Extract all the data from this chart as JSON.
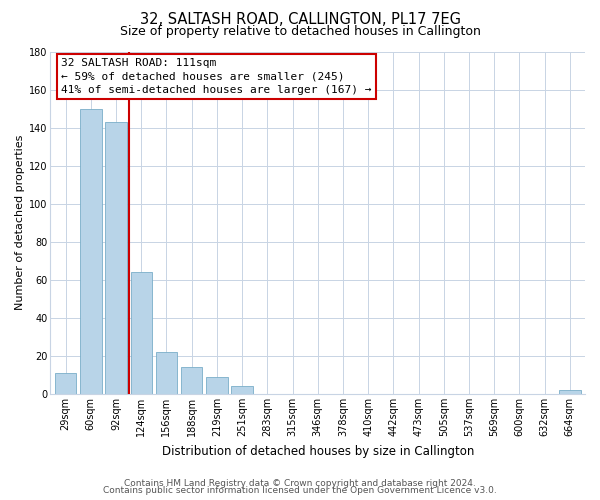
{
  "title": "32, SALTASH ROAD, CALLINGTON, PL17 7EG",
  "subtitle": "Size of property relative to detached houses in Callington",
  "xlabel": "Distribution of detached houses by size in Callington",
  "ylabel": "Number of detached properties",
  "bar_labels": [
    "29sqm",
    "60sqm",
    "92sqm",
    "124sqm",
    "156sqm",
    "188sqm",
    "219sqm",
    "251sqm",
    "283sqm",
    "315sqm",
    "346sqm",
    "378sqm",
    "410sqm",
    "442sqm",
    "473sqm",
    "505sqm",
    "537sqm",
    "569sqm",
    "600sqm",
    "632sqm",
    "664sqm"
  ],
  "bar_values": [
    11,
    150,
    143,
    64,
    22,
    14,
    9,
    4,
    0,
    0,
    0,
    0,
    0,
    0,
    0,
    0,
    0,
    0,
    0,
    0,
    2
  ],
  "bar_color": "#b8d4e8",
  "bar_edge_color": "#7aaec8",
  "ylim": [
    0,
    180
  ],
  "yticks": [
    0,
    20,
    40,
    60,
    80,
    100,
    120,
    140,
    160,
    180
  ],
  "marker_line_color": "#cc0000",
  "annotation_title": "32 SALTASH ROAD: 111sqm",
  "annotation_line1": "← 59% of detached houses are smaller (245)",
  "annotation_line2": "41% of semi-detached houses are larger (167) →",
  "annotation_box_facecolor": "#ffffff",
  "annotation_box_edgecolor": "#cc0000",
  "footer1": "Contains HM Land Registry data © Crown copyright and database right 2024.",
  "footer2": "Contains public sector information licensed under the Open Government Licence v3.0.",
  "background_color": "#ffffff",
  "grid_color": "#c8d4e4",
  "title_fontsize": 10.5,
  "subtitle_fontsize": 9,
  "xlabel_fontsize": 8.5,
  "ylabel_fontsize": 8,
  "tick_fontsize": 7,
  "annotation_fontsize": 8,
  "footer_fontsize": 6.5
}
